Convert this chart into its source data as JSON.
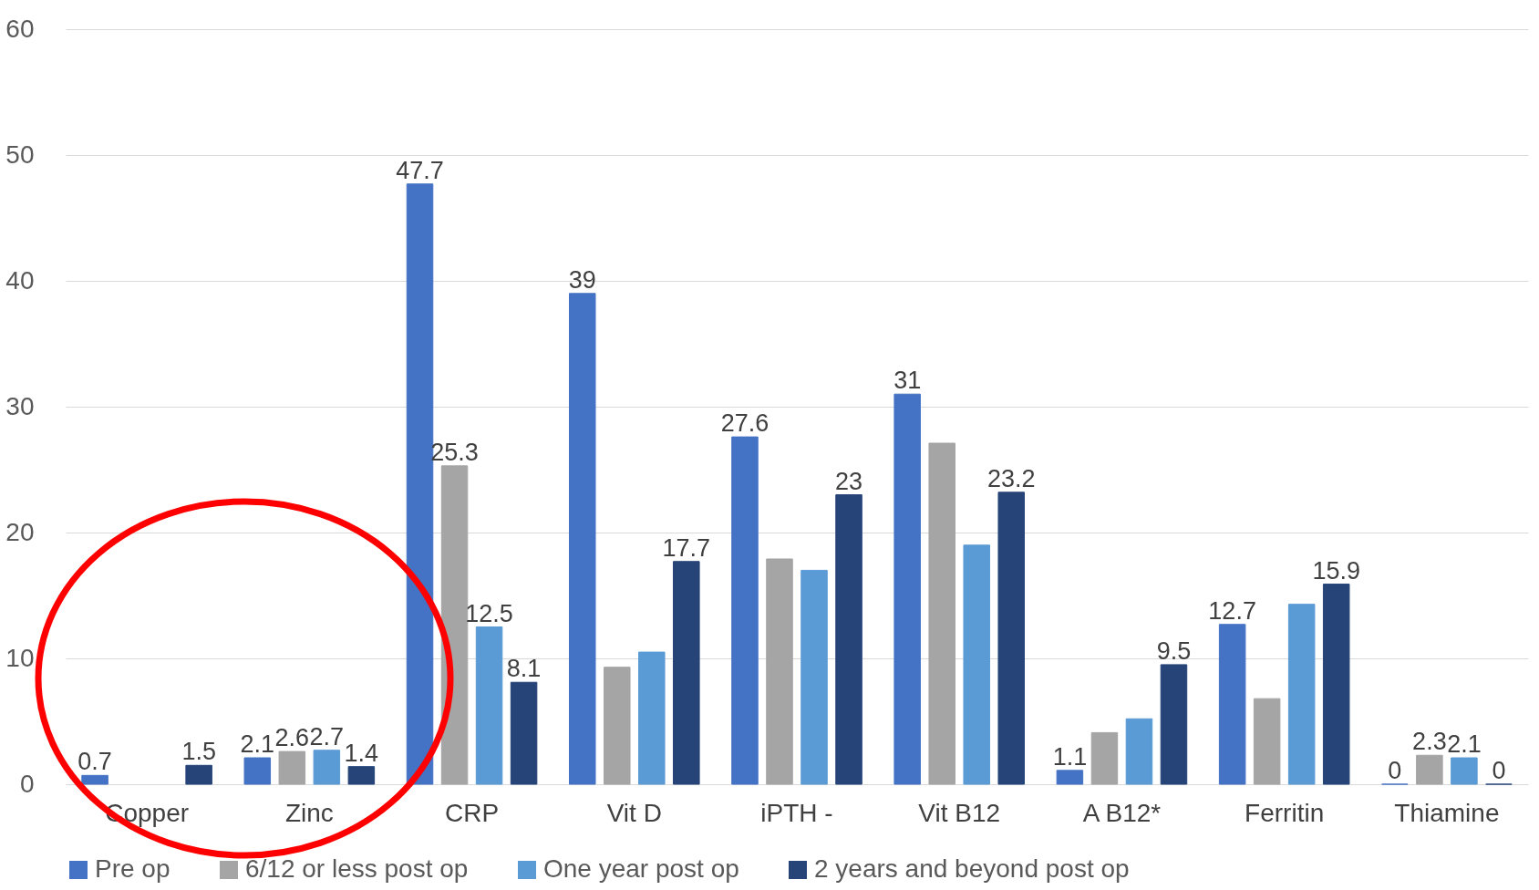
{
  "chart_data": {
    "type": "bar",
    "categories": [
      "Copper",
      "Zinc",
      "CRP",
      "Vit D",
      "iPTH -",
      "Vit B12",
      "A B12*",
      "Ferritin",
      "Thiamine"
    ],
    "series": [
      {
        "name": "Pre op",
        "color": "#4472c4",
        "values": [
          0.7,
          2.1,
          47.7,
          39,
          27.6,
          31,
          1.1,
          12.7,
          0
        ],
        "value_labels": [
          "0.7",
          "2.1",
          "47.7",
          "39",
          "27.6",
          "31",
          "1.1",
          "12.7",
          "0"
        ]
      },
      {
        "name": "6/12 or less post op",
        "color": "#a5a5a5",
        "values": [
          null,
          2.6,
          25.3,
          9.3,
          17.9,
          27.1,
          4.1,
          6.8,
          2.3
        ],
        "value_labels": [
          null,
          "2.6",
          "25.3",
          null,
          null,
          null,
          null,
          null,
          "2.3"
        ]
      },
      {
        "name": "One year post op",
        "color": "#5b9bd5",
        "values": [
          null,
          2.7,
          12.5,
          10.5,
          17.0,
          19.0,
          5.2,
          14.3,
          2.1
        ],
        "value_labels": [
          null,
          "2.7",
          "12.5",
          null,
          null,
          null,
          null,
          null,
          "2.1"
        ]
      },
      {
        "name": "2 years and beyond post op",
        "color": "#264478",
        "values": [
          1.5,
          1.4,
          8.1,
          17.7,
          23,
          23.2,
          9.5,
          15.9,
          0
        ],
        "value_labels": [
          "1.5",
          "1.4",
          "8.1",
          "17.7",
          "23",
          "23.2",
          "9.5",
          "15.9",
          "0"
        ]
      }
    ],
    "ylim": [
      0,
      60
    ],
    "yticks": [
      0,
      10,
      20,
      30,
      40,
      50,
      60
    ],
    "grid": "y",
    "legend": "bottom"
  }
}
